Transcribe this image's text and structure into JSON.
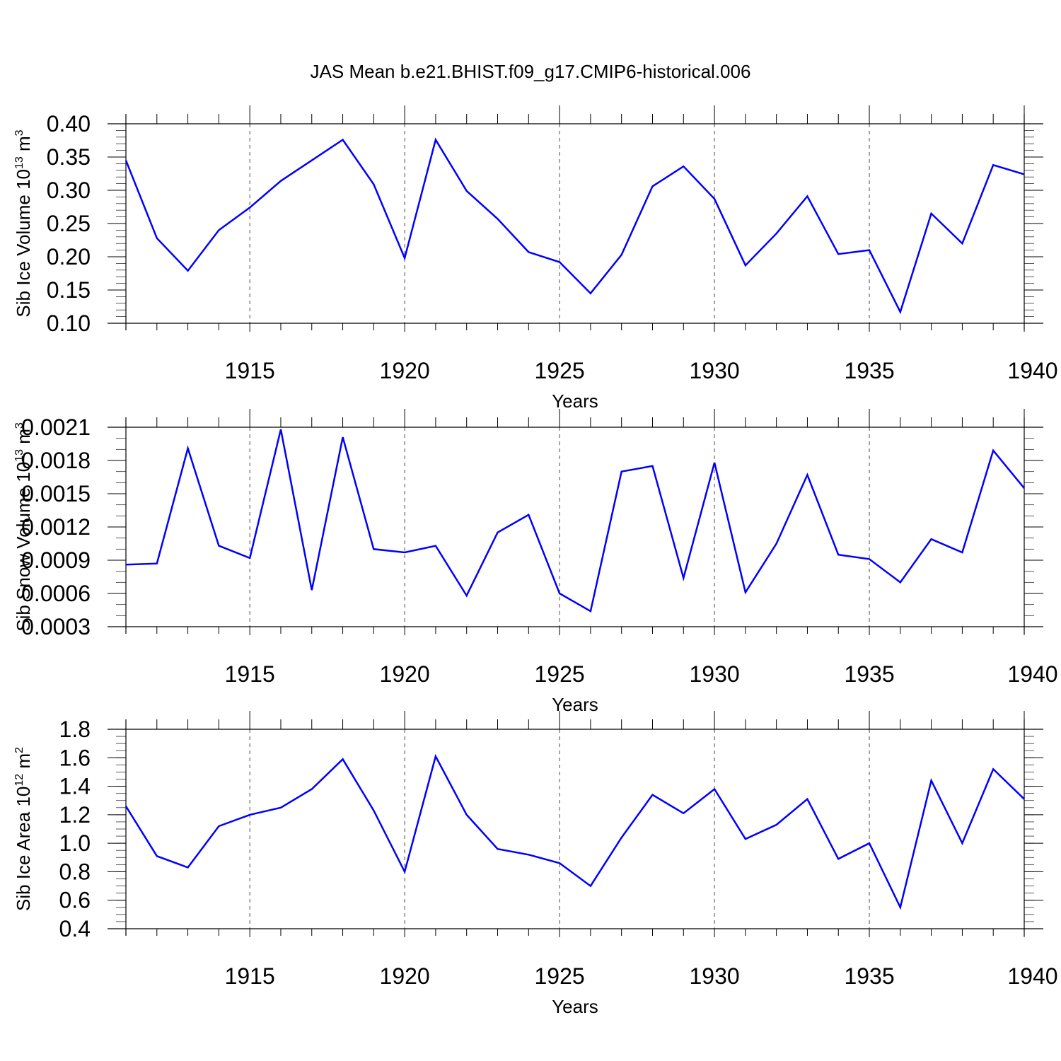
{
  "title": "JAS Mean b.e21.BHIST.f09_g17.CMIP6-historical.006",
  "colors": {
    "line": "#0000ff",
    "axis": "#000000",
    "grid": "#000000"
  },
  "chart_data": [
    {
      "type": "line",
      "ylabel": {
        "text": "Sib Ice Volume 10",
        "exp": "13",
        "unit": " m",
        "unit_exp": "3"
      },
      "xlabel": "Years",
      "xlim": [
        1911,
        1940
      ],
      "ylim": [
        0.1,
        0.4
      ],
      "xticks": [
        1915,
        1920,
        1925,
        1930,
        1935,
        1940
      ],
      "yticks": [
        "0.10",
        "0.15",
        "0.20",
        "0.25",
        "0.30",
        "0.35",
        "0.40"
      ],
      "yminor": 0.01,
      "grid": "vertical dashed at major x ticks",
      "x": [
        1911,
        1912,
        1913,
        1914,
        1915,
        1916,
        1917,
        1918,
        1919,
        1920,
        1921,
        1922,
        1923,
        1924,
        1925,
        1926,
        1927,
        1928,
        1929,
        1930,
        1931,
        1932,
        1933,
        1934,
        1935,
        1936,
        1937,
        1938,
        1939,
        1940
      ],
      "y": [
        0.345,
        0.228,
        0.179,
        0.24,
        0.274,
        0.314,
        0.345,
        0.376,
        0.309,
        0.198,
        0.376,
        0.299,
        0.257,
        0.207,
        0.192,
        0.145,
        0.203,
        0.306,
        0.336,
        0.287,
        0.187,
        0.235,
        0.291,
        0.204,
        0.21,
        0.117,
        0.265,
        0.22,
        0.338,
        0.324
      ]
    },
    {
      "type": "line",
      "ylabel": {
        "text": "Sib Snow Volume 10",
        "exp": "13",
        "unit": " m",
        "unit_exp": "3"
      },
      "xlabel": "Years",
      "xlim": [
        1911,
        1940
      ],
      "ylim": [
        0.0003,
        0.0021
      ],
      "xticks": [
        1915,
        1920,
        1925,
        1930,
        1935,
        1940
      ],
      "yticks": [
        "0.0003",
        "0.0006",
        "0.0009",
        "0.0012",
        "0.0015",
        "0.0018",
        "0.0021"
      ],
      "yminor": 0.0001,
      "grid": "vertical dashed at major x ticks",
      "x": [
        1911,
        1912,
        1913,
        1914,
        1915,
        1916,
        1917,
        1918,
        1919,
        1920,
        1921,
        1922,
        1923,
        1924,
        1925,
        1926,
        1927,
        1928,
        1929,
        1930,
        1931,
        1932,
        1933,
        1934,
        1935,
        1936,
        1937,
        1938,
        1939,
        1940
      ],
      "y": [
        0.00086,
        0.00087,
        0.00191,
        0.00103,
        0.00092,
        0.00208,
        0.00063,
        0.00201,
        0.001,
        0.00097,
        0.00103,
        0.00058,
        0.00115,
        0.00131,
        0.0006,
        0.00044,
        0.0017,
        0.00175,
        0.00074,
        0.00178,
        0.00061,
        0.00105,
        0.00167,
        0.00095,
        0.00091,
        0.0007,
        0.00109,
        0.00097,
        0.00189,
        0.00155
      ]
    },
    {
      "type": "line",
      "ylabel": {
        "text": "Sib Ice Area 10",
        "exp": "12",
        "unit": " m",
        "unit_exp": "2"
      },
      "xlabel": "Years",
      "xlim": [
        1911,
        1940
      ],
      "ylim": [
        0.4,
        1.8
      ],
      "xticks": [
        1915,
        1920,
        1925,
        1930,
        1935,
        1940
      ],
      "yticks": [
        "0.4",
        "0.6",
        "0.8",
        "1.0",
        "1.2",
        "1.4",
        "1.6",
        "1.8"
      ],
      "yminor": 0.05,
      "grid": "vertical dashed at major x ticks",
      "x": [
        1911,
        1912,
        1913,
        1914,
        1915,
        1916,
        1917,
        1918,
        1919,
        1920,
        1921,
        1922,
        1923,
        1924,
        1925,
        1926,
        1927,
        1928,
        1929,
        1930,
        1931,
        1932,
        1933,
        1934,
        1935,
        1936,
        1937,
        1938,
        1939,
        1940
      ],
      "y": [
        1.26,
        0.91,
        0.83,
        1.12,
        1.2,
        1.25,
        1.38,
        1.59,
        1.23,
        0.8,
        1.61,
        1.2,
        0.96,
        0.92,
        0.86,
        0.7,
        1.04,
        1.34,
        1.21,
        1.38,
        1.03,
        1.13,
        1.31,
        0.89,
        1.0,
        0.55,
        1.44,
        1.0,
        1.52,
        1.31
      ]
    }
  ]
}
